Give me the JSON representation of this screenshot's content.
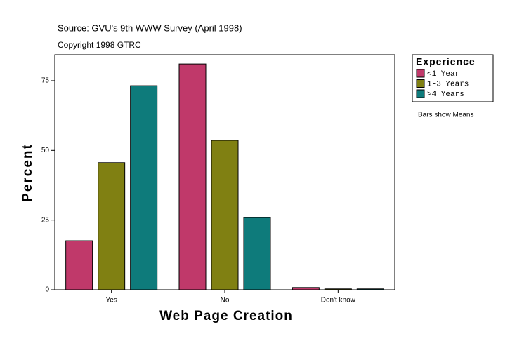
{
  "chart_data": {
    "type": "bar",
    "source": "Source: GVU's 9th WWW Survey (April 1998)",
    "copyright": "Copyright 1998 GTRC",
    "x_label": "Web Page Creation",
    "y_label": "Percent",
    "categories": [
      "Yes",
      "No",
      "Don't know"
    ],
    "legend_title": "Experience",
    "note": "Bars show Means",
    "series": [
      {
        "name": "<1 Year",
        "color": "#c0396a",
        "values": [
          17.6,
          81.0,
          0.8
        ]
      },
      {
        "name": "1-3 Years",
        "color": "#808012",
        "values": [
          45.6,
          53.6,
          0.3
        ]
      },
      {
        "name": ">4 Years",
        "color": "#0e7b7b",
        "values": [
          73.2,
          25.9,
          0.3
        ]
      }
    ],
    "ylim": [
      0,
      84.3
    ],
    "yticks": [
      0,
      25,
      50,
      75
    ],
    "legend_position": "right"
  }
}
